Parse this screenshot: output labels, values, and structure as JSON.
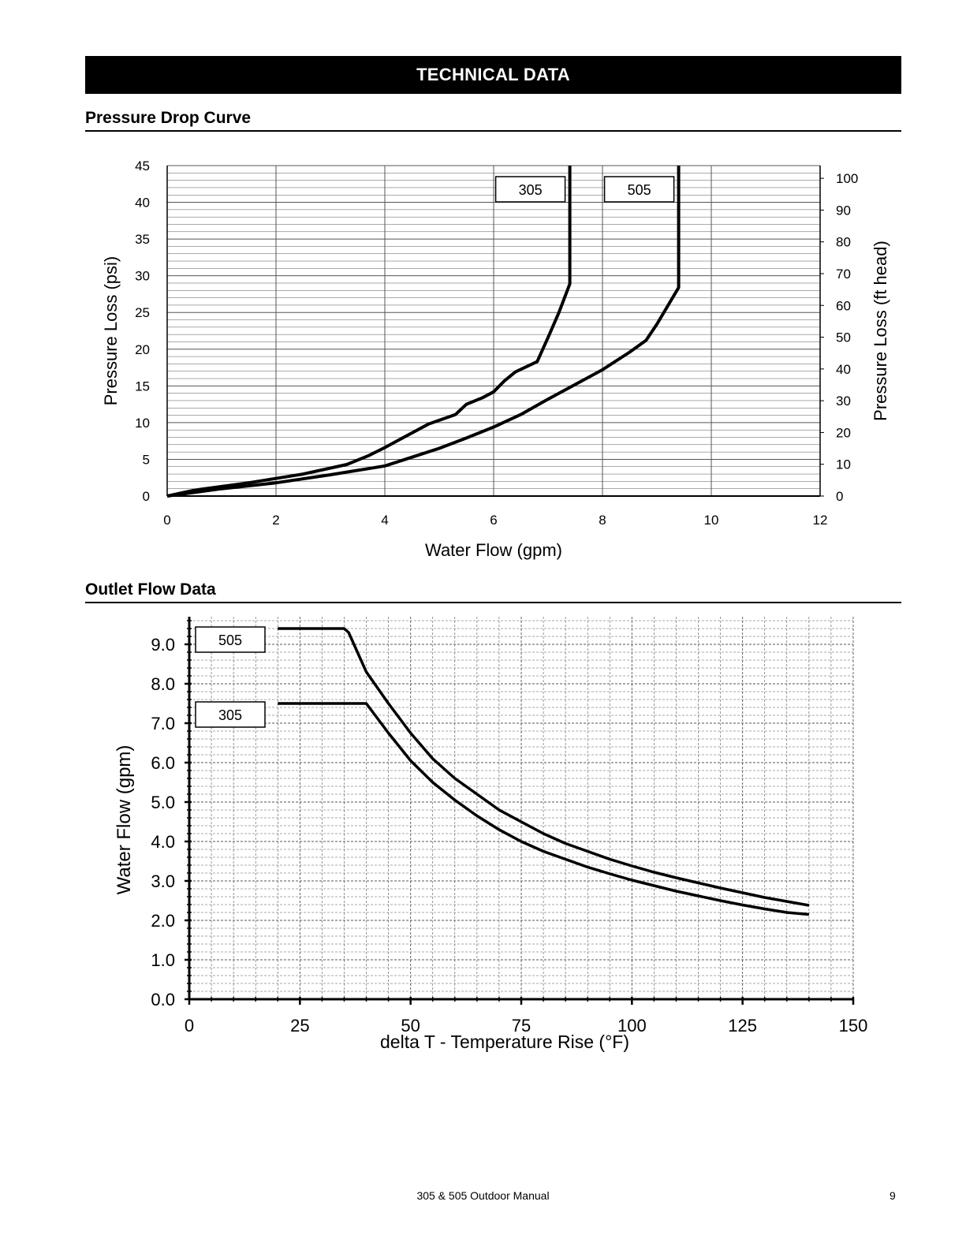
{
  "header": {
    "banner": "TECHNICAL DATA"
  },
  "sections": {
    "pressure": "Pressure Drop Curve",
    "outlet": "Outlet Flow Data"
  },
  "footer": {
    "title": "305 & 505 Outdoor Manual",
    "page": "9"
  },
  "colors": {
    "ink": "#000000",
    "grid": "#555555",
    "paper": "#ffffff"
  },
  "chart_data": [
    {
      "type": "line",
      "xlabel": "Water Flow (gpm)",
      "ylabel": "Pressure Loss (psi)",
      "y2label": "Pressure Loss (ft head)",
      "xlim": [
        0,
        12
      ],
      "ylim": [
        0,
        45
      ],
      "y2lim": [
        0,
        104
      ],
      "xticks": [
        "0",
        "2",
        "4",
        "6",
        "8",
        "10",
        "12"
      ],
      "yticks": [
        "0",
        "5",
        "10",
        "15",
        "20",
        "25",
        "30",
        "35",
        "40",
        "45"
      ],
      "y2ticks": [
        "0",
        "10",
        "20",
        "30",
        "40",
        "50",
        "60",
        "70",
        "80",
        "90",
        "100"
      ],
      "grid": true,
      "series": [
        {
          "name": "305",
          "points": [
            [
              0,
              0
            ],
            [
              0.5,
              0.8
            ],
            [
              1.5,
              1.8
            ],
            [
              2.5,
              3.0
            ],
            [
              3.3,
              4.3
            ],
            [
              3.7,
              5.5
            ],
            [
              4.0,
              6.6
            ],
            [
              4.4,
              8.2
            ],
            [
              4.8,
              9.8
            ],
            [
              5.3,
              11.1
            ],
            [
              5.5,
              12.5
            ],
            [
              5.8,
              13.4
            ],
            [
              6.0,
              14.2
            ],
            [
              6.2,
              15.7
            ],
            [
              6.4,
              16.9
            ],
            [
              6.8,
              18.3
            ],
            [
              7.0,
              21.6
            ],
            [
              7.2,
              25.0
            ],
            [
              7.4,
              28.9
            ],
            [
              7.4,
              45
            ]
          ]
        },
        {
          "name": "505",
          "points": [
            [
              0,
              0
            ],
            [
              1.0,
              1.0
            ],
            [
              2.0,
              1.8
            ],
            [
              3.0,
              2.9
            ],
            [
              4.0,
              4.1
            ],
            [
              4.5,
              5.3
            ],
            [
              5.0,
              6.5
            ],
            [
              5.5,
              7.9
            ],
            [
              6.0,
              9.4
            ],
            [
              6.5,
              11.1
            ],
            [
              7.0,
              13.2
            ],
            [
              7.5,
              15.2
            ],
            [
              8.0,
              17.2
            ],
            [
              8.5,
              19.6
            ],
            [
              8.8,
              21.2
            ],
            [
              9.0,
              23.4
            ],
            [
              9.4,
              28.4
            ],
            [
              9.4,
              45
            ]
          ]
        }
      ]
    },
    {
      "type": "line",
      "xlabel": "delta T - Temperature Rise (°F)",
      "ylabel": "Water Flow (gpm)",
      "xlim": [
        0,
        150
      ],
      "ylim": [
        0,
        10
      ],
      "xticks": [
        "0",
        "25",
        "50",
        "75",
        "100",
        "125",
        "150"
      ],
      "yticks": [
        "0.0",
        "1.0",
        "2.0",
        "3.0",
        "4.0",
        "5.0",
        "6.0",
        "7.0",
        "8.0",
        "9.0"
      ],
      "grid": true,
      "series": [
        {
          "name": "505",
          "points": [
            [
              20,
              9.4
            ],
            [
              35,
              9.4
            ],
            [
              36,
              9.3
            ],
            [
              40,
              8.3
            ],
            [
              45,
              7.5
            ],
            [
              50,
              6.75
            ],
            [
              55,
              6.1
            ],
            [
              60,
              5.6
            ],
            [
              65,
              5.2
            ],
            [
              70,
              4.8
            ],
            [
              75,
              4.5
            ],
            [
              80,
              4.2
            ],
            [
              85,
              3.95
            ],
            [
              90,
              3.75
            ],
            [
              95,
              3.55
            ],
            [
              100,
              3.38
            ],
            [
              105,
              3.22
            ],
            [
              110,
              3.08
            ],
            [
              115,
              2.95
            ],
            [
              120,
              2.82
            ],
            [
              125,
              2.7
            ],
            [
              130,
              2.58
            ],
            [
              135,
              2.48
            ],
            [
              140,
              2.38
            ]
          ]
        },
        {
          "name": "305",
          "points": [
            [
              20,
              7.5
            ],
            [
              40,
              7.5
            ],
            [
              45,
              6.75
            ],
            [
              50,
              6.05
            ],
            [
              55,
              5.5
            ],
            [
              60,
              5.05
            ],
            [
              65,
              4.65
            ],
            [
              70,
              4.3
            ],
            [
              75,
              4.0
            ],
            [
              80,
              3.75
            ],
            [
              85,
              3.55
            ],
            [
              90,
              3.35
            ],
            [
              95,
              3.18
            ],
            [
              100,
              3.02
            ],
            [
              105,
              2.88
            ],
            [
              110,
              2.74
            ],
            [
              115,
              2.62
            ],
            [
              120,
              2.5
            ],
            [
              125,
              2.39
            ],
            [
              130,
              2.29
            ],
            [
              135,
              2.2
            ],
            [
              140,
              2.15
            ]
          ]
        }
      ]
    }
  ]
}
